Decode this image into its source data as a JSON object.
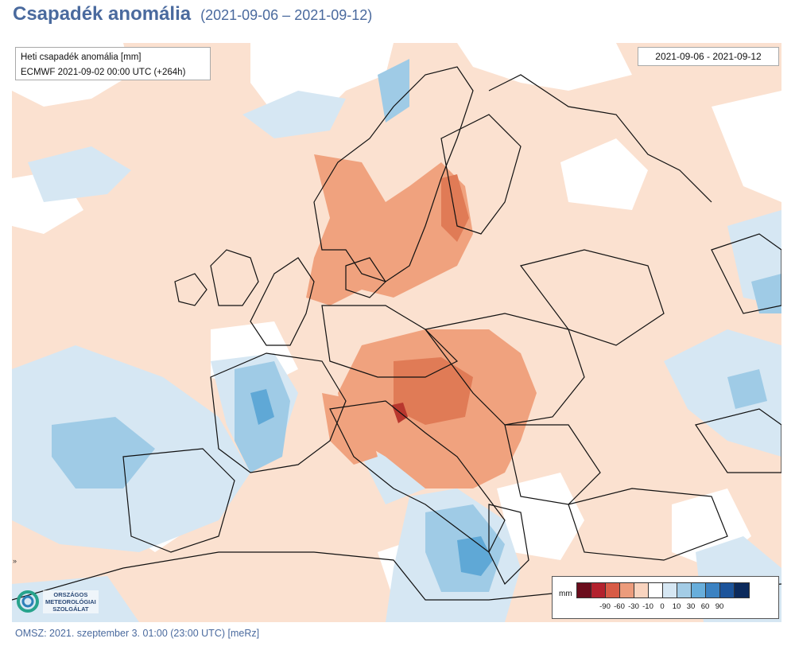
{
  "header": {
    "title": "Csapadék anomália",
    "period": "(2021-09-06 – 2021-09-12)"
  },
  "map": {
    "info_line1": "Heti csapadék anomália [mm]",
    "info_line2": "ECMWF 2021-09-02 00:00 UTC (+264h)",
    "date_range": "2021-09-06 - 2021-09-12",
    "colors": {
      "background": "#ffffff",
      "dry_light": "#f9d5be",
      "dry_medium": "#f0a27e",
      "dry_strong": "#e07b56",
      "dry_severe": "#b8372e",
      "wet_light": "#d6e7f3",
      "wet_medium": "#9fcbe6",
      "wet_strong": "#5fa8d6",
      "wet_severe": "#2b72b6",
      "border_line": "#111111"
    }
  },
  "legend": {
    "unit": "mm",
    "ticks": [
      "-90",
      "-60",
      "-30",
      "-10",
      "0",
      "10",
      "30",
      "60",
      "90"
    ],
    "colors": [
      "#6b0d1c",
      "#b3222e",
      "#d85b46",
      "#ec9c7c",
      "#f9d4bf",
      "#ffffff",
      "#d6e7f3",
      "#a3cce6",
      "#68aedb",
      "#3b82c2",
      "#1c549b",
      "#0b2a5c"
    ]
  },
  "logo": {
    "line1": "ORSZÁGOS",
    "line2": "METEOROLÓGIAI",
    "line3": "SZOLGÁLAT"
  },
  "footer": {
    "text": "OMSZ: 2021. szeptember 3. 01:00 (23:00 UTC) [meRz]"
  }
}
